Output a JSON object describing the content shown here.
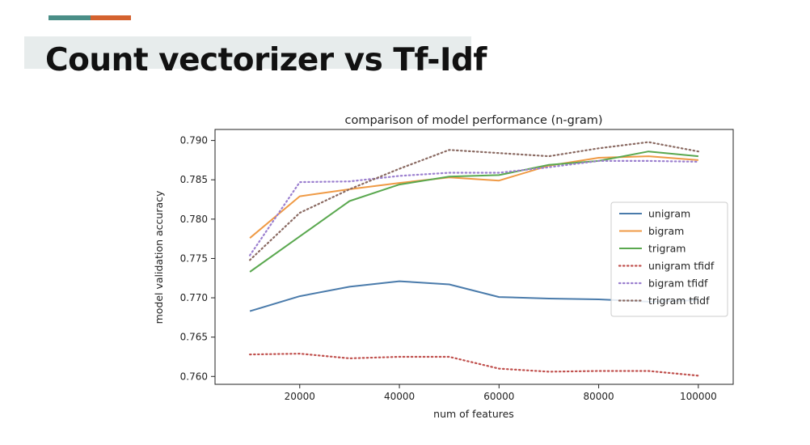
{
  "slide": {
    "title": "Count vectorizer vs Tf-Idf",
    "accent_colors": [
      "#4a8e87",
      "#d4622f"
    ]
  },
  "chart_data": {
    "type": "line",
    "title": "comparison of model performance (n-gram)",
    "xlabel": "num of features",
    "ylabel": "model validation accuracy",
    "xlim": [
      3000,
      107000
    ],
    "ylim": [
      0.759,
      0.7914
    ],
    "xticks": [
      20000,
      40000,
      60000,
      80000,
      100000
    ],
    "xtick_labels": [
      "20000",
      "40000",
      "60000",
      "80000",
      "100000"
    ],
    "yticks": [
      0.76,
      0.765,
      0.77,
      0.775,
      0.78,
      0.785,
      0.79
    ],
    "ytick_labels": [
      "0.760",
      "0.765",
      "0.770",
      "0.775",
      "0.780",
      "0.785",
      "0.790"
    ],
    "grid": false,
    "legend_position": "center-right",
    "x": [
      10000,
      20000,
      30000,
      40000,
      50000,
      60000,
      70000,
      80000,
      90000,
      100000
    ],
    "series": [
      {
        "name": "unigram",
        "color": "#4a7bab",
        "style": "solid",
        "values": [
          0.7683,
          0.7702,
          0.7714,
          0.7721,
          0.7717,
          0.7701,
          0.7699,
          0.7698,
          0.7695,
          0.7697
        ]
      },
      {
        "name": "bigram",
        "color": "#ef9a45",
        "style": "solid",
        "values": [
          0.7776,
          0.7829,
          0.7838,
          0.7846,
          0.7853,
          0.7849,
          0.7868,
          0.7878,
          0.788,
          0.7875
        ]
      },
      {
        "name": "trigram",
        "color": "#5aa84f",
        "style": "solid",
        "values": [
          0.7733,
          0.7778,
          0.7823,
          0.7844,
          0.7854,
          0.7856,
          0.7869,
          0.7874,
          0.7886,
          0.788
        ]
      },
      {
        "name": "unigram tfidf",
        "color": "#c0504d",
        "style": "dotted",
        "values": [
          0.7628,
          0.7629,
          0.7623,
          0.7625,
          0.7625,
          0.761,
          0.7606,
          0.7607,
          0.7607,
          0.7601
        ]
      },
      {
        "name": "bigram tfidf",
        "color": "#9b7fcf",
        "style": "dotted",
        "values": [
          0.7754,
          0.7847,
          0.7848,
          0.7855,
          0.7859,
          0.7859,
          0.7866,
          0.7874,
          0.7874,
          0.7873
        ]
      },
      {
        "name": "trigram tfidf",
        "color": "#8a6a62",
        "style": "dotted",
        "values": [
          0.7748,
          0.7808,
          0.7838,
          0.7864,
          0.7888,
          0.7884,
          0.788,
          0.789,
          0.7898,
          0.7886
        ]
      }
    ]
  }
}
